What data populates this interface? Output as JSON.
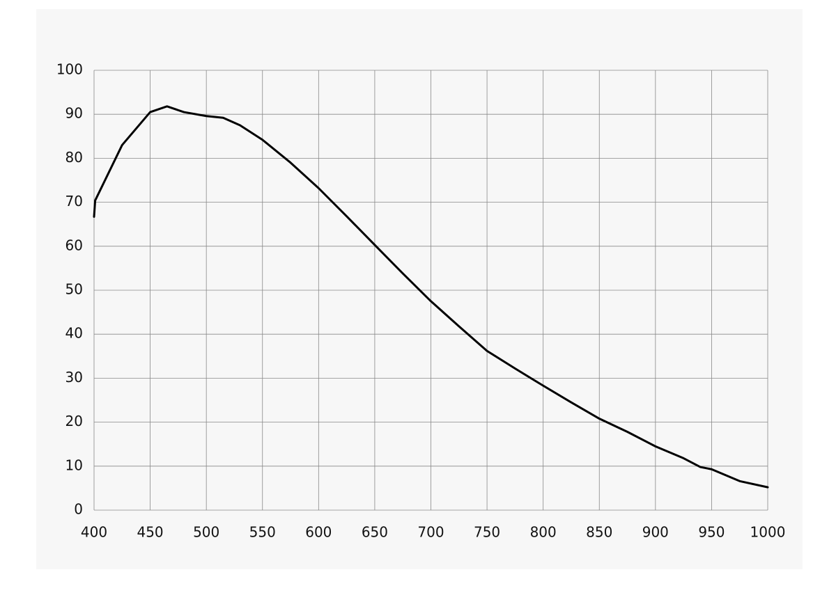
{
  "chart_data": {
    "type": "line",
    "x": [
      400,
      401,
      425,
      450,
      465,
      480,
      500,
      515,
      530,
      550,
      575,
      600,
      625,
      650,
      675,
      700,
      725,
      750,
      775,
      800,
      825,
      850,
      875,
      900,
      925,
      940,
      950,
      975,
      1000
    ],
    "series": [
      {
        "color": "#000000",
        "values": [
          66.7,
          70.4,
          83,
          90.5,
          91.8,
          90.5,
          89.6,
          89.2,
          87.5,
          84.2,
          79,
          73.2,
          66.8,
          60.3,
          53.8,
          47.5,
          41.8,
          36.2,
          32.2,
          28.3,
          24.5,
          20.8,
          17.8,
          14.5,
          11.8,
          9.8,
          9.3,
          6.6,
          5.2
        ]
      }
    ],
    "xlim": [
      400,
      1000
    ],
    "xticks": [
      400,
      450,
      500,
      550,
      600,
      650,
      700,
      750,
      800,
      850,
      900,
      950,
      1000
    ],
    "ylim": [
      0,
      100
    ],
    "yticks": [
      0,
      10,
      20,
      30,
      40,
      50,
      60,
      70,
      80,
      90,
      100
    ],
    "grid": true
  }
}
